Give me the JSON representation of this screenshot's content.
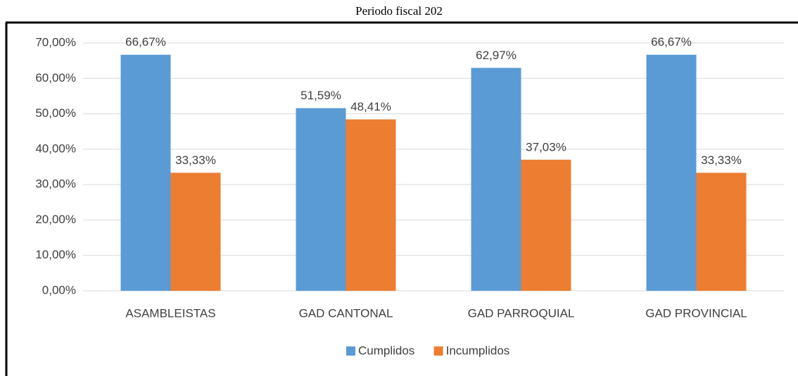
{
  "chart_data": {
    "type": "bar",
    "title": "Periodo fiscal 202",
    "categories": [
      "ASAMBLEISTAS",
      "GAD CANTONAL",
      "GAD PARROQUIAL",
      "GAD PROVINCIAL"
    ],
    "series": [
      {
        "name": "Cumplidos",
        "color": "#5b9bd5",
        "values": [
          66.67,
          51.59,
          62.97,
          66.67
        ],
        "value_labels": [
          "66,67%",
          "51,59%",
          "62,97%",
          "66,67%"
        ]
      },
      {
        "name": "Incumplidos",
        "color": "#ed7d31",
        "values": [
          33.33,
          48.41,
          37.03,
          33.33
        ],
        "value_labels": [
          "33,33%",
          "48,41%",
          "37,03%",
          "33,33%"
        ]
      }
    ],
    "ylim": [
      0,
      70
    ],
    "yticks": [
      {
        "value": 0,
        "label": "0,00%"
      },
      {
        "value": 10,
        "label": "10,00%"
      },
      {
        "value": 20,
        "label": "20,00%"
      },
      {
        "value": 30,
        "label": "30,00%"
      },
      {
        "value": 40,
        "label": "40,00%"
      },
      {
        "value": 50,
        "label": "50,00%"
      },
      {
        "value": 60,
        "label": "60,00%"
      },
      {
        "value": 70,
        "label": "70,00%"
      }
    ],
    "grid": true,
    "legend": "bottom"
  }
}
